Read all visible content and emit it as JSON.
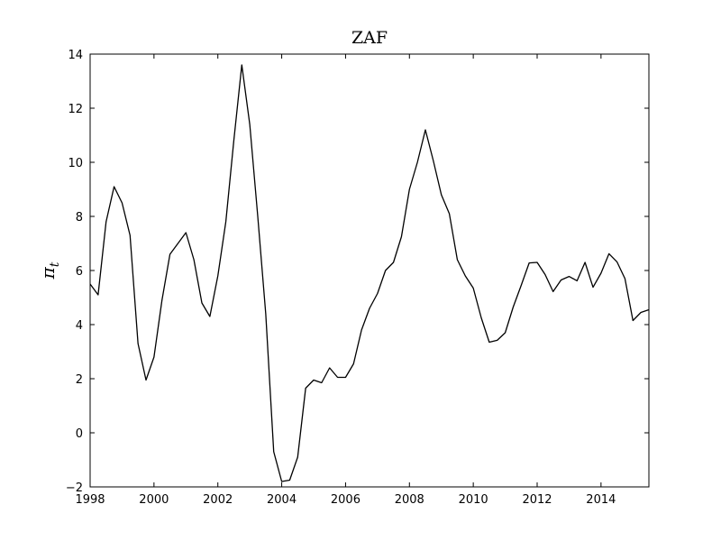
{
  "chart_data": {
    "type": "line",
    "title": "ZAF",
    "xlabel": "",
    "ylabel": "π",
    "ylabel_subscript": "t",
    "xlim": [
      1998,
      2015.5
    ],
    "ylim": [
      -2,
      14
    ],
    "xticks": [
      1998,
      2000,
      2002,
      2004,
      2006,
      2008,
      2010,
      2012,
      2014
    ],
    "yticks": [
      -2,
      0,
      2,
      4,
      6,
      8,
      10,
      12,
      14
    ],
    "xtick_labels": [
      "1998",
      "2000",
      "2002",
      "2004",
      "2006",
      "2008",
      "2010",
      "2012",
      "2014"
    ],
    "ytick_labels": [
      "−2",
      "0",
      "2",
      "4",
      "6",
      "8",
      "10",
      "12",
      "14"
    ],
    "grid": false,
    "line_color": "#000000",
    "series": [
      {
        "x": [
          1998.0,
          1998.25,
          1998.5,
          1998.75,
          1999.0,
          1999.25,
          1999.5,
          1999.75,
          2000.0,
          2000.25,
          2000.5,
          2000.75,
          2001.0,
          2001.25,
          2001.5,
          2001.75,
          2002.0,
          2002.25,
          2002.5,
          2002.75,
          2003.0,
          2003.25,
          2003.5,
          2003.75,
          2004.0,
          2004.25,
          2004.5,
          2004.75,
          2005.0,
          2005.25,
          2005.5,
          2005.75,
          2006.0,
          2006.25,
          2006.5,
          2006.75,
          2007.0,
          2007.25,
          2007.5,
          2007.75,
          2008.0,
          2008.25,
          2008.5,
          2008.75,
          2009.0,
          2009.25,
          2009.5,
          2009.75,
          2010.0,
          2010.25,
          2010.5,
          2010.75,
          2011.0,
          2011.25,
          2011.5,
          2011.75,
          2012.0,
          2012.25,
          2012.5,
          2012.75,
          2013.0,
          2013.25,
          2013.5,
          2013.75,
          2014.0,
          2014.25,
          2014.5,
          2014.75,
          2015.0,
          2015.25,
          2015.5
        ],
        "values": [
          5.5,
          5.1,
          7.8,
          9.1,
          8.5,
          7.3,
          3.3,
          1.95,
          2.8,
          4.9,
          6.6,
          7.0,
          7.4,
          6.4,
          4.8,
          4.3,
          5.8,
          7.8,
          10.8,
          13.6,
          11.4,
          8.0,
          4.4,
          -0.7,
          -1.8,
          -1.75,
          -0.9,
          1.65,
          1.95,
          1.85,
          2.4,
          2.05,
          2.05,
          2.55,
          3.8,
          4.6,
          5.15,
          6.0,
          6.3,
          7.25,
          9.0,
          10.0,
          11.2,
          10.05,
          8.8,
          8.1,
          6.4,
          5.8,
          5.35,
          4.25,
          3.35,
          3.42,
          3.7,
          4.65,
          5.45,
          6.28,
          6.3,
          5.85,
          5.22,
          5.65,
          5.78,
          5.62,
          6.3,
          5.38,
          5.9,
          6.62,
          6.32,
          5.7,
          4.15,
          4.45,
          4.55
        ]
      }
    ]
  }
}
